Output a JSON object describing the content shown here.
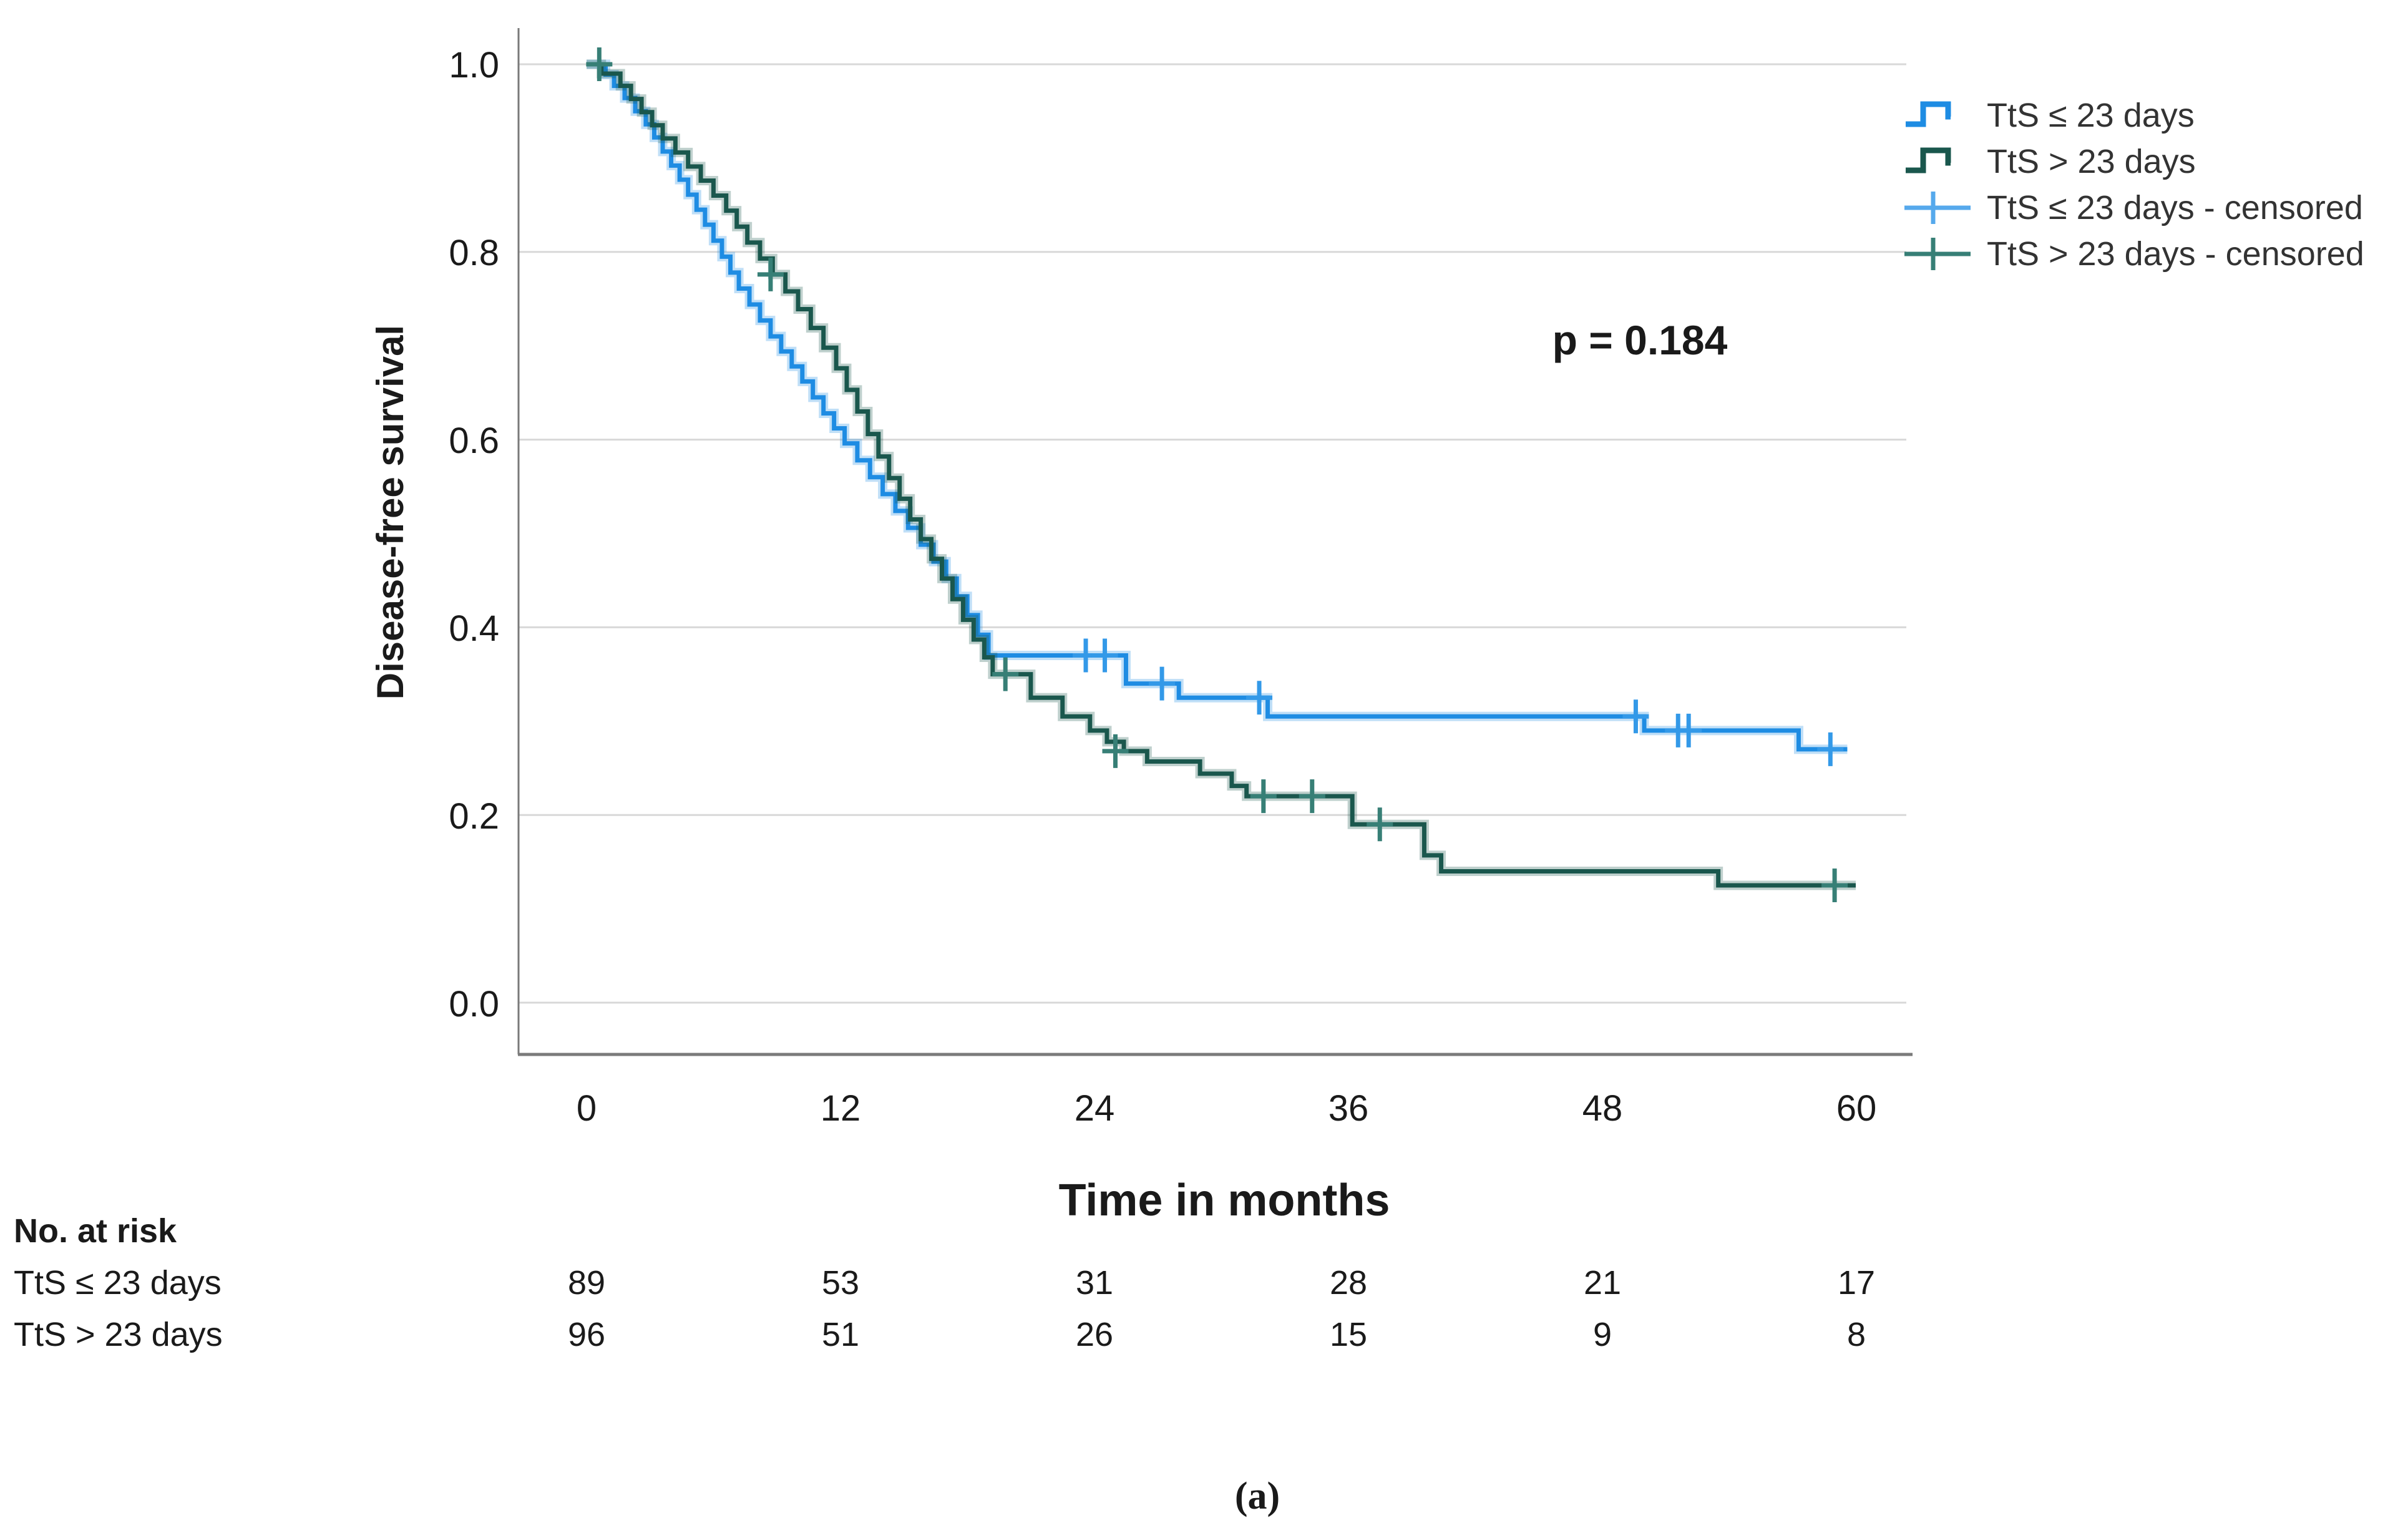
{
  "figure": {
    "p_value_label": "p = 0.184",
    "caption": "(a)"
  },
  "axes": {
    "x_title": "Time in months",
    "y_title": "Disease-free survival",
    "x_ticks": [
      "0",
      "12",
      "24",
      "36",
      "48",
      "60"
    ],
    "y_ticks": [
      "1.0",
      "0.8",
      "0.6",
      "0.4",
      "0.2",
      "0.0"
    ]
  },
  "legend": {
    "items": [
      {
        "label": "TtS ≤ 23 days",
        "type": "step-line"
      },
      {
        "label": "TtS > 23 days",
        "type": "step-line"
      },
      {
        "label": "TtS ≤ 23 days - censored",
        "type": "censor-mark"
      },
      {
        "label": "TtS > 23 days - censored",
        "type": "censor-mark"
      }
    ]
  },
  "risk_table": {
    "title": "No. at risk",
    "time_points": [
      0,
      12,
      24,
      36,
      48,
      60
    ],
    "rows": [
      {
        "label": "TtS ≤ 23 days",
        "values": [
          "89",
          "53",
          "31",
          "28",
          "21",
          "17"
        ]
      },
      {
        "label": "TtS > 23 days",
        "values": [
          "96",
          "51",
          "26",
          "15",
          "9",
          "8"
        ]
      }
    ]
  },
  "chart_data": {
    "type": "line",
    "subtype": "kaplan-meier-step",
    "title": "",
    "xlabel": "Time in months",
    "ylabel": "Disease-free survival",
    "xlim": [
      -3.2,
      62.4
    ],
    "ylim": [
      -0.055,
      1.04
    ],
    "x_ticks": [
      0,
      12,
      24,
      36,
      48,
      60
    ],
    "y_ticks": [
      0.0,
      0.2,
      0.4,
      0.6,
      0.8,
      1.0
    ],
    "grid": true,
    "annotation": {
      "text": "p = 0.184",
      "x": 50,
      "y": 0.71
    },
    "legend_position": "upper-right-outside",
    "colors": {
      "gridline": "#d8d8d8",
      "axis_line": "#7a7a7a",
      "text": "#1a1a1a"
    },
    "series": [
      {
        "name": "TtS ≤ 23 days",
        "color": "#1e8ce3",
        "censor_color": "#3399e8",
        "legend_censor_color": "#56a9ec",
        "end_time": 59.6,
        "steps": [
          [
            0,
            1.0
          ],
          [
            0.9,
            0.989
          ],
          [
            1.3,
            0.977
          ],
          [
            1.8,
            0.964
          ],
          [
            2.3,
            0.95
          ],
          [
            2.8,
            0.936
          ],
          [
            3.2,
            0.922
          ],
          [
            3.6,
            0.907
          ],
          [
            4.0,
            0.892
          ],
          [
            4.4,
            0.877
          ],
          [
            4.8,
            0.861
          ],
          [
            5.2,
            0.845
          ],
          [
            5.6,
            0.829
          ],
          [
            6.0,
            0.812
          ],
          [
            6.4,
            0.795
          ],
          [
            6.8,
            0.778
          ],
          [
            7.2,
            0.761
          ],
          [
            7.7,
            0.744
          ],
          [
            8.2,
            0.727
          ],
          [
            8.7,
            0.71
          ],
          [
            9.2,
            0.694
          ],
          [
            9.7,
            0.678
          ],
          [
            10.2,
            0.662
          ],
          [
            10.7,
            0.645
          ],
          [
            11.2,
            0.628
          ],
          [
            11.7,
            0.612
          ],
          [
            12.2,
            0.596
          ],
          [
            12.8,
            0.578
          ],
          [
            13.4,
            0.56
          ],
          [
            14.0,
            0.542
          ],
          [
            14.6,
            0.524
          ],
          [
            15.2,
            0.506
          ],
          [
            15.8,
            0.488
          ],
          [
            16.4,
            0.47
          ],
          [
            17.0,
            0.452
          ],
          [
            17.5,
            0.433
          ],
          [
            18.0,
            0.413
          ],
          [
            18.5,
            0.392
          ],
          [
            19.0,
            0.37
          ],
          [
            25.5,
            0.34
          ],
          [
            28.0,
            0.325
          ],
          [
            32.2,
            0.305
          ],
          [
            50.0,
            0.29
          ],
          [
            57.3,
            0.27
          ]
        ],
        "censored": [
          [
            23.6,
            0.37
          ],
          [
            24.5,
            0.37
          ],
          [
            27.2,
            0.34
          ],
          [
            31.8,
            0.325
          ],
          [
            49.6,
            0.305
          ],
          [
            51.6,
            0.29
          ],
          [
            52.1,
            0.29
          ],
          [
            58.8,
            0.27
          ]
        ]
      },
      {
        "name": "TtS > 23 days",
        "color": "#1a574d",
        "censor_color": "#377f76",
        "legend_censor_color": "#377f76",
        "end_time": 60,
        "steps": [
          [
            0,
            1.0
          ],
          [
            0.7,
            0.99
          ],
          [
            1.6,
            0.977
          ],
          [
            2.1,
            0.963
          ],
          [
            2.6,
            0.949
          ],
          [
            3.1,
            0.935
          ],
          [
            3.6,
            0.921
          ],
          [
            4.2,
            0.906
          ],
          [
            4.8,
            0.891
          ],
          [
            5.4,
            0.876
          ],
          [
            6.0,
            0.86
          ],
          [
            6.6,
            0.844
          ],
          [
            7.1,
            0.827
          ],
          [
            7.6,
            0.81
          ],
          [
            8.2,
            0.793
          ],
          [
            8.8,
            0.776
          ],
          [
            9.4,
            0.758
          ],
          [
            10.0,
            0.739
          ],
          [
            10.6,
            0.719
          ],
          [
            11.2,
            0.698
          ],
          [
            11.8,
            0.676
          ],
          [
            12.3,
            0.653
          ],
          [
            12.8,
            0.63
          ],
          [
            13.3,
            0.606
          ],
          [
            13.8,
            0.582
          ],
          [
            14.3,
            0.559
          ],
          [
            14.8,
            0.537
          ],
          [
            15.3,
            0.515
          ],
          [
            15.8,
            0.494
          ],
          [
            16.3,
            0.473
          ],
          [
            16.8,
            0.452
          ],
          [
            17.3,
            0.43
          ],
          [
            17.8,
            0.408
          ],
          [
            18.3,
            0.387
          ],
          [
            18.8,
            0.368
          ],
          [
            19.2,
            0.35
          ],
          [
            21.0,
            0.325
          ],
          [
            22.5,
            0.305
          ],
          [
            23.8,
            0.29
          ],
          [
            24.6,
            0.278
          ],
          [
            25.4,
            0.268
          ],
          [
            26.5,
            0.257
          ],
          [
            29.0,
            0.244
          ],
          [
            30.5,
            0.231
          ],
          [
            31.2,
            0.22
          ],
          [
            36.2,
            0.19
          ],
          [
            39.6,
            0.157
          ],
          [
            40.4,
            0.14
          ],
          [
            53.5,
            0.125
          ]
        ],
        "censored": [
          [
            0.6,
            1.0
          ],
          [
            8.7,
            0.776
          ],
          [
            19.8,
            0.35
          ],
          [
            25.0,
            0.268
          ],
          [
            32.0,
            0.22
          ],
          [
            34.3,
            0.22
          ],
          [
            37.5,
            0.19
          ],
          [
            59.0,
            0.125
          ]
        ]
      }
    ],
    "at_risk": {
      "TtS <= 23 days": [
        89,
        53,
        31,
        28,
        21,
        17
      ],
      "TtS > 23 days": [
        96,
        51,
        26,
        15,
        9,
        8
      ]
    }
  }
}
